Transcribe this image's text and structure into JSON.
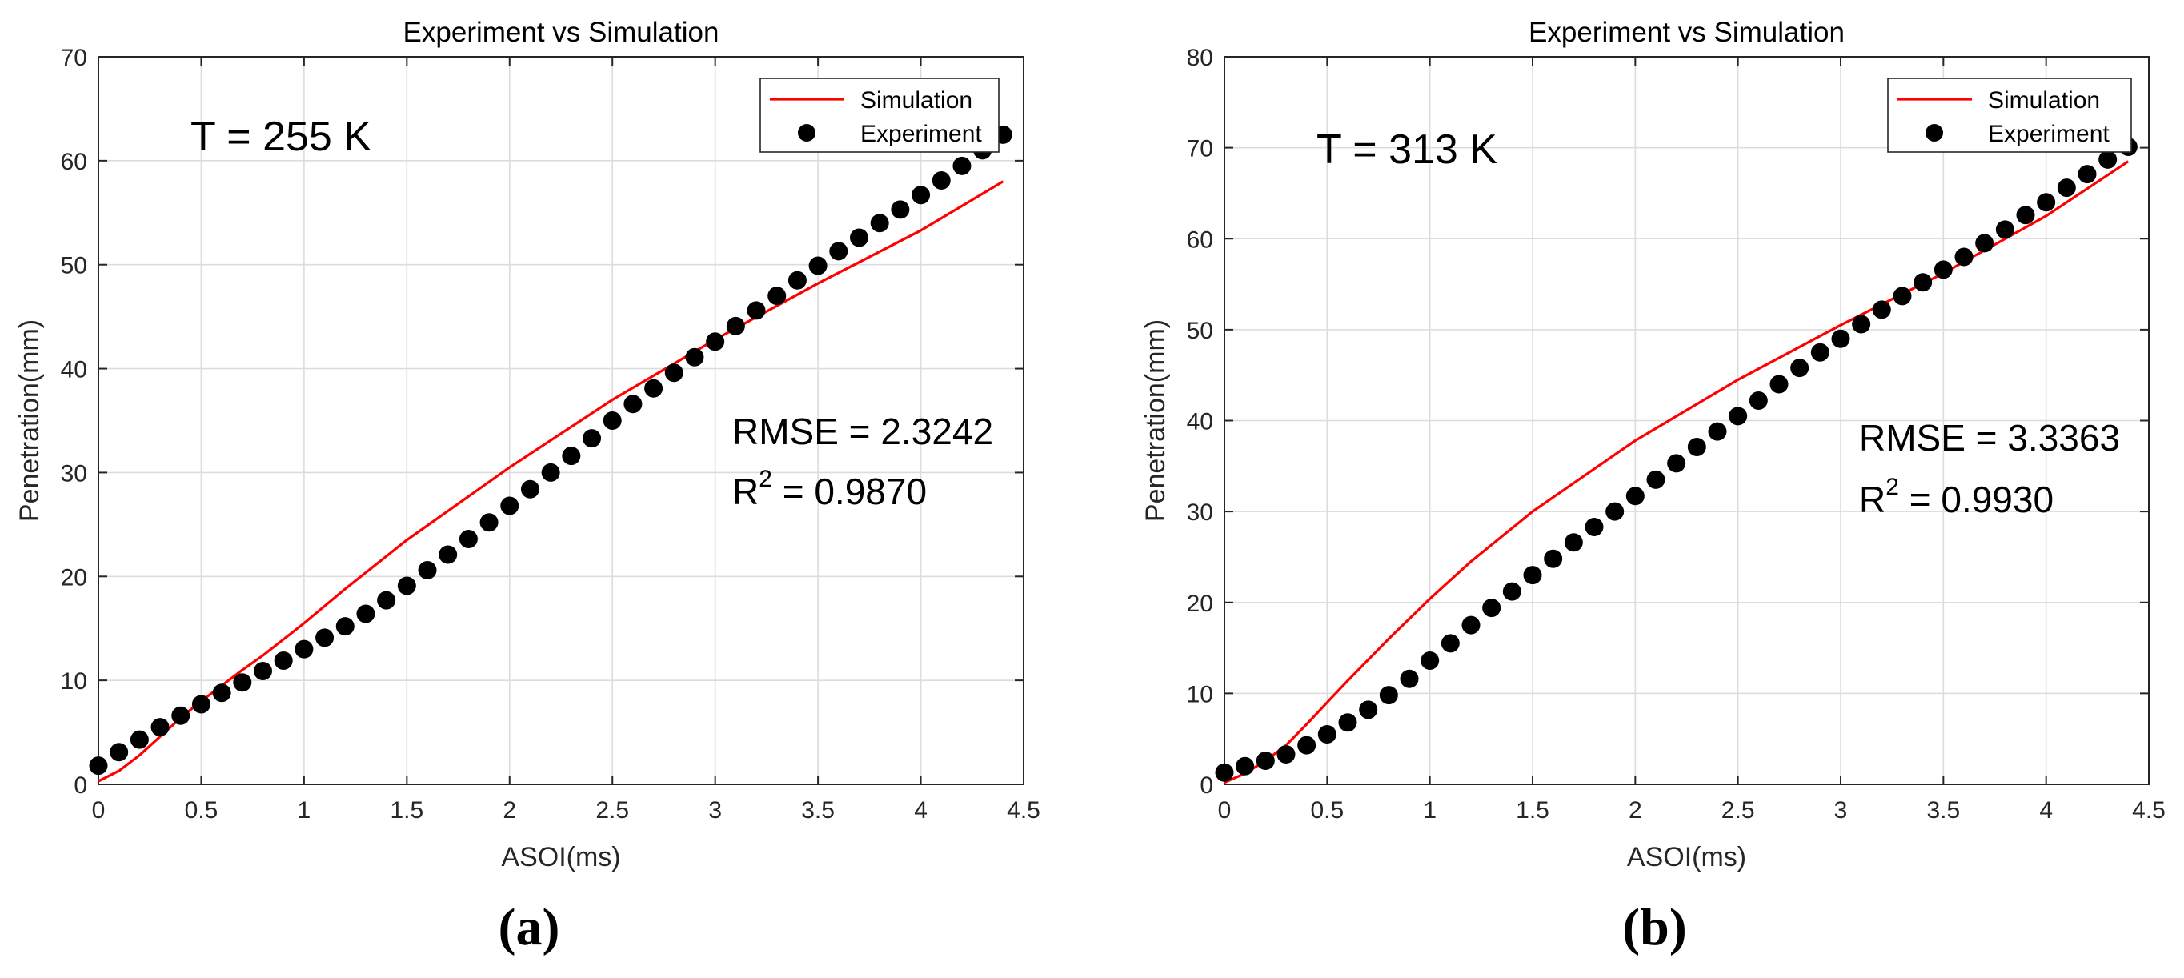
{
  "chart_data": [
    {
      "type": "line",
      "panel_label": "(a)",
      "title": "Experiment vs Simulation",
      "xlabel": "ASOI(ms)",
      "ylabel": "Penetration(mm)",
      "xlim": [
        0,
        4.5
      ],
      "ylim": [
        0,
        70
      ],
      "xticks": [
        0,
        0.5,
        1,
        1.5,
        2,
        2.5,
        3,
        3.5,
        4,
        4.5
      ],
      "yticks": [
        0,
        10,
        20,
        30,
        40,
        50,
        60,
        70
      ],
      "xtick_labels": [
        "0",
        "0.5",
        "1",
        "1.5",
        "2",
        "2.5",
        "3",
        "3.5",
        "4",
        "4.5"
      ],
      "ytick_labels": [
        "0",
        "10",
        "20",
        "30",
        "40",
        "50",
        "60",
        "70"
      ],
      "grid": true,
      "legend_position": "top-right",
      "annotation_temperature": "T = 255 K",
      "rmse_text": "RMSE = 2.3242",
      "r2_prefix": "R",
      "r2_sup": "2",
      "r2_value": " = 0.9870",
      "series": [
        {
          "name": "Simulation",
          "style": "line",
          "color": "#ff0000",
          "x": [
            0,
            0.1,
            0.2,
            0.3,
            0.4,
            0.5,
            0.6,
            0.7,
            0.8,
            1.0,
            1.2,
            1.5,
            2.0,
            2.5,
            3.0,
            3.5,
            4.0,
            4.4
          ],
          "y": [
            0.3,
            1.3,
            2.8,
            4.6,
            6.4,
            8.0,
            9.5,
            11.0,
            12.4,
            15.5,
            18.8,
            23.5,
            30.5,
            37.0,
            42.8,
            48.2,
            53.3,
            58.0
          ]
        },
        {
          "name": "Experiment",
          "style": "markers",
          "color": "#000000",
          "x": [
            0,
            0.1,
            0.2,
            0.3,
            0.4,
            0.5,
            0.6,
            0.7,
            0.8,
            0.9,
            1.0,
            1.1,
            1.2,
            1.3,
            1.4,
            1.5,
            1.6,
            1.7,
            1.8,
            1.9,
            2.0,
            2.1,
            2.2,
            2.3,
            2.4,
            2.5,
            2.6,
            2.7,
            2.8,
            2.9,
            3.0,
            3.1,
            3.2,
            3.3,
            3.4,
            3.5,
            3.6,
            3.7,
            3.8,
            3.9,
            4.0,
            4.1,
            4.2,
            4.3,
            4.4
          ],
          "y": [
            1.8,
            3.1,
            4.3,
            5.5,
            6.6,
            7.7,
            8.8,
            9.8,
            10.9,
            11.9,
            13.0,
            14.1,
            15.2,
            16.4,
            17.7,
            19.1,
            20.6,
            22.1,
            23.6,
            25.2,
            26.8,
            28.4,
            30.0,
            31.6,
            33.3,
            35.0,
            36.6,
            38.1,
            39.6,
            41.1,
            42.6,
            44.1,
            45.6,
            47.0,
            48.5,
            49.9,
            51.3,
            52.6,
            54.0,
            55.3,
            56.7,
            58.1,
            59.5,
            61.0,
            62.5
          ]
        }
      ]
    },
    {
      "type": "line",
      "panel_label": "(b)",
      "title": "Experiment vs Simulation",
      "xlabel": "ASOI(ms)",
      "ylabel": "Penetration(mm)",
      "xlim": [
        0,
        4.5
      ],
      "ylim": [
        0,
        80
      ],
      "xticks": [
        0,
        0.5,
        1,
        1.5,
        2,
        2.5,
        3,
        3.5,
        4,
        4.5
      ],
      "yticks": [
        0,
        10,
        20,
        30,
        40,
        50,
        60,
        70,
        80
      ],
      "xtick_labels": [
        "0",
        "0.5",
        "1",
        "1.5",
        "2",
        "2.5",
        "3",
        "3.5",
        "4",
        "4.5"
      ],
      "ytick_labels": [
        "0",
        "10",
        "20",
        "30",
        "40",
        "50",
        "60",
        "70",
        "80"
      ],
      "grid": true,
      "legend_position": "top-right",
      "annotation_temperature": "T = 313 K",
      "rmse_text": "RMSE = 3.3363",
      "r2_prefix": "R",
      "r2_sup": "2",
      "r2_value": " = 0.9930",
      "series": [
        {
          "name": "Simulation",
          "style": "line",
          "color": "#ff0000",
          "x": [
            0,
            0.1,
            0.2,
            0.3,
            0.4,
            0.5,
            0.6,
            0.8,
            1.0,
            1.2,
            1.5,
            2.0,
            2.5,
            3.0,
            3.5,
            4.0,
            4.4
          ],
          "y": [
            0.2,
            1.2,
            2.6,
            4.3,
            6.6,
            9.0,
            11.4,
            16.0,
            20.4,
            24.5,
            30.0,
            37.8,
            44.5,
            50.5,
            56.2,
            62.5,
            68.5
          ]
        },
        {
          "name": "Experiment",
          "style": "markers",
          "color": "#000000",
          "x": [
            0,
            0.1,
            0.2,
            0.3,
            0.4,
            0.5,
            0.6,
            0.7,
            0.8,
            0.9,
            1.0,
            1.1,
            1.2,
            1.3,
            1.4,
            1.5,
            1.6,
            1.7,
            1.8,
            1.9,
            2.0,
            2.1,
            2.2,
            2.3,
            2.4,
            2.5,
            2.6,
            2.7,
            2.8,
            2.9,
            3.0,
            3.1,
            3.2,
            3.3,
            3.4,
            3.5,
            3.6,
            3.7,
            3.8,
            3.9,
            4.0,
            4.1,
            4.2,
            4.3,
            4.4
          ],
          "y": [
            1.3,
            2.0,
            2.6,
            3.3,
            4.3,
            5.5,
            6.8,
            8.2,
            9.8,
            11.6,
            13.6,
            15.5,
            17.5,
            19.4,
            21.2,
            23.0,
            24.8,
            26.6,
            28.3,
            30.0,
            31.7,
            33.5,
            35.3,
            37.1,
            38.8,
            40.5,
            42.2,
            44.0,
            45.8,
            47.5,
            49.0,
            50.6,
            52.2,
            53.7,
            55.2,
            56.6,
            58.0,
            59.5,
            61.0,
            62.6,
            64.0,
            65.6,
            67.1,
            68.7,
            70.1
          ]
        }
      ]
    }
  ]
}
